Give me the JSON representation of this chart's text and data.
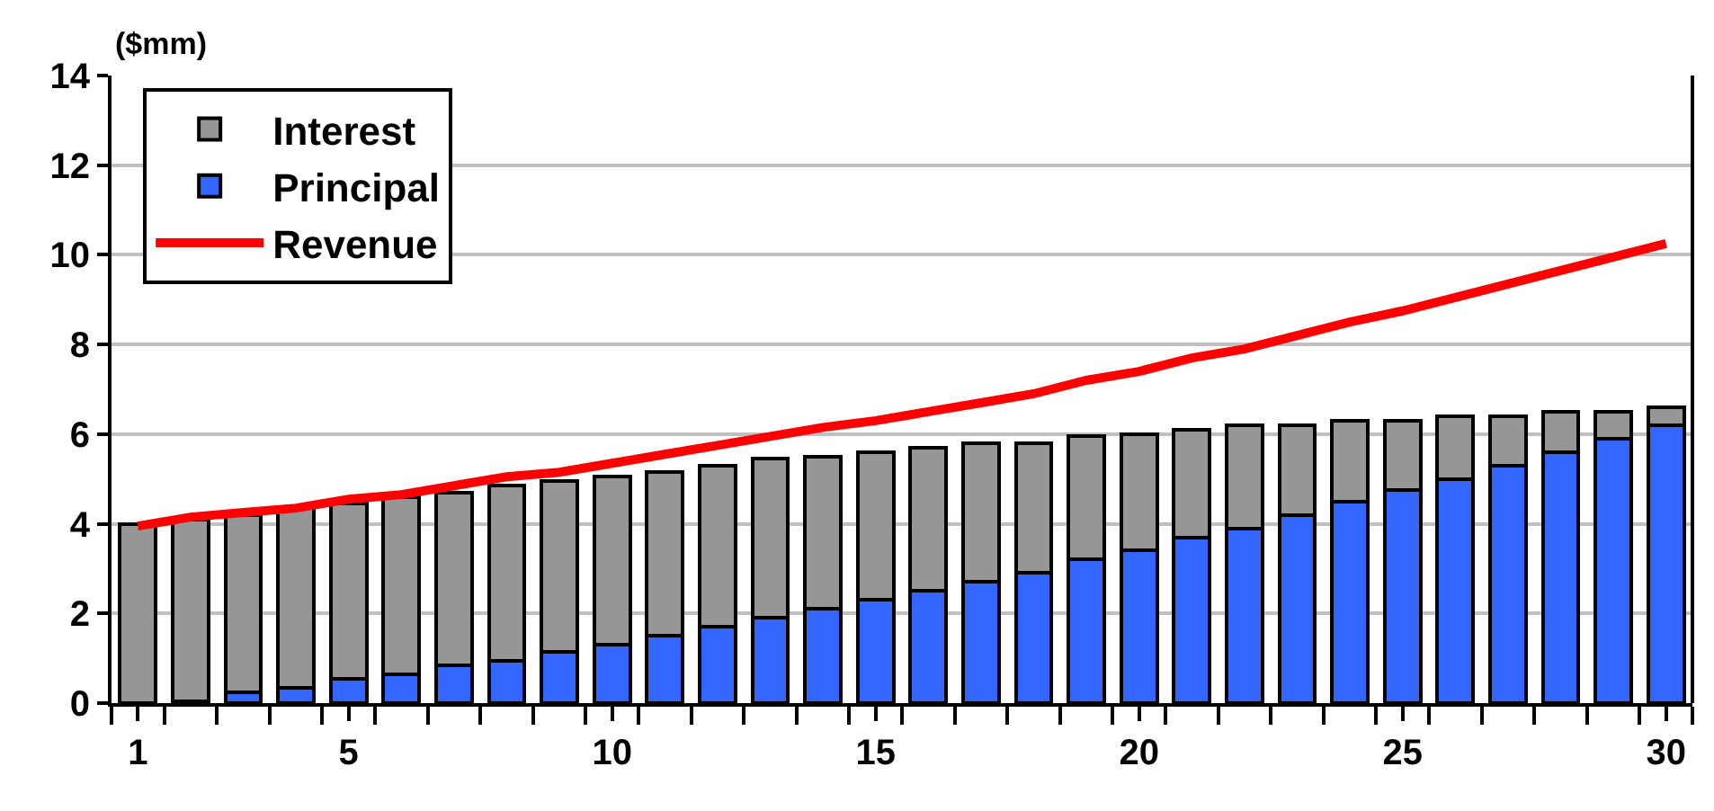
{
  "chart_data": {
    "type": "bar",
    "stacked": true,
    "ylabel": "($mm)",
    "x": [
      1,
      2,
      3,
      4,
      5,
      6,
      7,
      8,
      9,
      10,
      11,
      12,
      13,
      14,
      15,
      16,
      17,
      18,
      19,
      20,
      21,
      22,
      23,
      24,
      25,
      26,
      27,
      28,
      29,
      30
    ],
    "xlim": [
      0.5,
      30.5
    ],
    "xticks": [
      1,
      5,
      10,
      15,
      20,
      25,
      30
    ],
    "ylim": [
      0,
      14
    ],
    "yticks": [
      0,
      2,
      4,
      6,
      8,
      10,
      12,
      14
    ],
    "grid": "y",
    "legend": "top left",
    "series": [
      {
        "name": "Principal",
        "color": "#3366ff",
        "values": [
          0,
          0.05,
          0.25,
          0.35,
          0.55,
          0.65,
          0.85,
          0.95,
          1.15,
          1.3,
          1.5,
          1.7,
          1.9,
          2.1,
          2.3,
          2.5,
          2.7,
          2.9,
          3.2,
          3.4,
          3.7,
          3.9,
          4.2,
          4.5,
          4.75,
          5.0,
          5.3,
          5.6,
          5.9,
          6.2
        ]
      },
      {
        "name": "Interest",
        "color": "#969696",
        "values": [
          4.0,
          4.05,
          3.95,
          4.0,
          3.9,
          3.95,
          3.85,
          3.9,
          3.8,
          3.75,
          3.65,
          3.6,
          3.55,
          3.4,
          3.3,
          3.2,
          3.1,
          2.9,
          2.75,
          2.6,
          2.4,
          2.3,
          2.0,
          1.8,
          1.55,
          1.4,
          1.1,
          0.9,
          0.6,
          0.4
        ]
      },
      {
        "name": "Revenue",
        "type": "line",
        "color": "#ff0000",
        "marker": "none",
        "values": [
          3.95,
          4.15,
          4.25,
          4.35,
          4.55,
          4.65,
          4.85,
          5.05,
          5.15,
          5.35,
          5.55,
          5.75,
          5.95,
          6.15,
          6.3,
          6.5,
          6.7,
          6.9,
          7.2,
          7.4,
          7.7,
          7.9,
          8.2,
          8.5,
          8.75,
          9.05,
          9.35,
          9.65,
          9.95,
          10.25
        ]
      }
    ]
  }
}
